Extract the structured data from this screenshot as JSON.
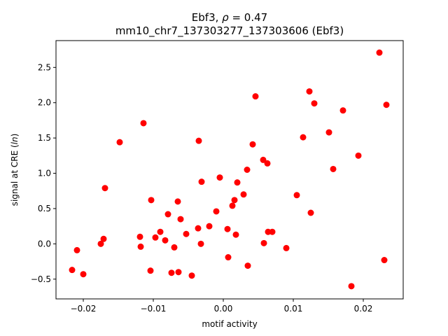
{
  "chart_data": {
    "type": "scatter",
    "title": {
      "line1_prefix": "Ebf3, ",
      "line1_rho": "ρ",
      "line1_suffix": " = 0.47",
      "line2": "mm10_chr7_137303277_137303606 (Ebf3)"
    },
    "xlabel": "motif activity",
    "ylabel": {
      "prefix": "signal at CRE (",
      "italic": "ln",
      "suffix": ")"
    },
    "xlim": [
      -0.0239,
      0.0257
    ],
    "ylim": [
      -0.78,
      2.88
    ],
    "xticks": [
      {
        "value": -0.02,
        "label": "−0.02"
      },
      {
        "value": -0.01,
        "label": "−0.01"
      },
      {
        "value": 0.0,
        "label": "0.00"
      },
      {
        "value": 0.01,
        "label": "0.01"
      },
      {
        "value": 0.02,
        "label": "0.02"
      }
    ],
    "yticks": [
      {
        "value": -0.5,
        "label": "−0.5"
      },
      {
        "value": 0.0,
        "label": "0.0"
      },
      {
        "value": 0.5,
        "label": "0.5"
      },
      {
        "value": 1.0,
        "label": "1.0"
      },
      {
        "value": 1.5,
        "label": "1.5"
      },
      {
        "value": 2.0,
        "label": "2.0"
      },
      {
        "value": 2.5,
        "label": "2.5"
      }
    ],
    "grid": false,
    "legend": "none",
    "marker_color": "#ff0000",
    "points": [
      {
        "x": -0.0216,
        "y": -0.37
      },
      {
        "x": -0.0209,
        "y": -0.09
      },
      {
        "x": -0.02,
        "y": -0.43
      },
      {
        "x": -0.0175,
        "y": 0.0
      },
      {
        "x": -0.0171,
        "y": 0.07
      },
      {
        "x": -0.0169,
        "y": 0.79
      },
      {
        "x": -0.0148,
        "y": 1.44
      },
      {
        "x": -0.0119,
        "y": 0.1
      },
      {
        "x": -0.0118,
        "y": -0.04
      },
      {
        "x": -0.0114,
        "y": 1.71
      },
      {
        "x": -0.0104,
        "y": -0.38
      },
      {
        "x": -0.0103,
        "y": 0.62
      },
      {
        "x": -0.0097,
        "y": 0.09
      },
      {
        "x": -0.009,
        "y": 0.17
      },
      {
        "x": -0.0083,
        "y": 0.05
      },
      {
        "x": -0.0079,
        "y": 0.42
      },
      {
        "x": -0.0074,
        "y": -0.41
      },
      {
        "x": -0.007,
        "y": -0.05
      },
      {
        "x": -0.0065,
        "y": 0.6
      },
      {
        "x": -0.0064,
        "y": -0.4
      },
      {
        "x": -0.0061,
        "y": 0.35
      },
      {
        "x": -0.0053,
        "y": 0.14
      },
      {
        "x": -0.0045,
        "y": -0.45
      },
      {
        "x": -0.0036,
        "y": 0.22
      },
      {
        "x": -0.0035,
        "y": 1.46
      },
      {
        "x": -0.0032,
        "y": 0.0
      },
      {
        "x": -0.0031,
        "y": 0.88
      },
      {
        "x": -0.002,
        "y": 0.25
      },
      {
        "x": -0.001,
        "y": 0.46
      },
      {
        "x": -0.0005,
        "y": 0.94
      },
      {
        "x": 0.0006,
        "y": 0.21
      },
      {
        "x": 0.0007,
        "y": -0.19
      },
      {
        "x": 0.0013,
        "y": 0.54
      },
      {
        "x": 0.0016,
        "y": 0.62
      },
      {
        "x": 0.0018,
        "y": 0.13
      },
      {
        "x": 0.002,
        "y": 0.87
      },
      {
        "x": 0.0029,
        "y": 0.7
      },
      {
        "x": 0.0034,
        "y": 1.05
      },
      {
        "x": 0.0035,
        "y": -0.31
      },
      {
        "x": 0.0042,
        "y": 1.41
      },
      {
        "x": 0.0046,
        "y": 2.09
      },
      {
        "x": 0.0057,
        "y": 1.19
      },
      {
        "x": 0.0058,
        "y": 0.01
      },
      {
        "x": 0.0063,
        "y": 1.14
      },
      {
        "x": 0.0064,
        "y": 0.17
      },
      {
        "x": 0.007,
        "y": 0.17
      },
      {
        "x": 0.009,
        "y": -0.06
      },
      {
        "x": 0.0105,
        "y": 0.69
      },
      {
        "x": 0.0114,
        "y": 1.51
      },
      {
        "x": 0.0123,
        "y": 2.16
      },
      {
        "x": 0.0125,
        "y": 0.44
      },
      {
        "x": 0.013,
        "y": 1.99
      },
      {
        "x": 0.0151,
        "y": 1.58
      },
      {
        "x": 0.0157,
        "y": 1.06
      },
      {
        "x": 0.0171,
        "y": 1.89
      },
      {
        "x": 0.0183,
        "y": -0.6
      },
      {
        "x": 0.0193,
        "y": 1.25
      },
      {
        "x": 0.0223,
        "y": 2.71
      },
      {
        "x": 0.023,
        "y": -0.23
      },
      {
        "x": 0.0233,
        "y": 1.97
      }
    ]
  }
}
